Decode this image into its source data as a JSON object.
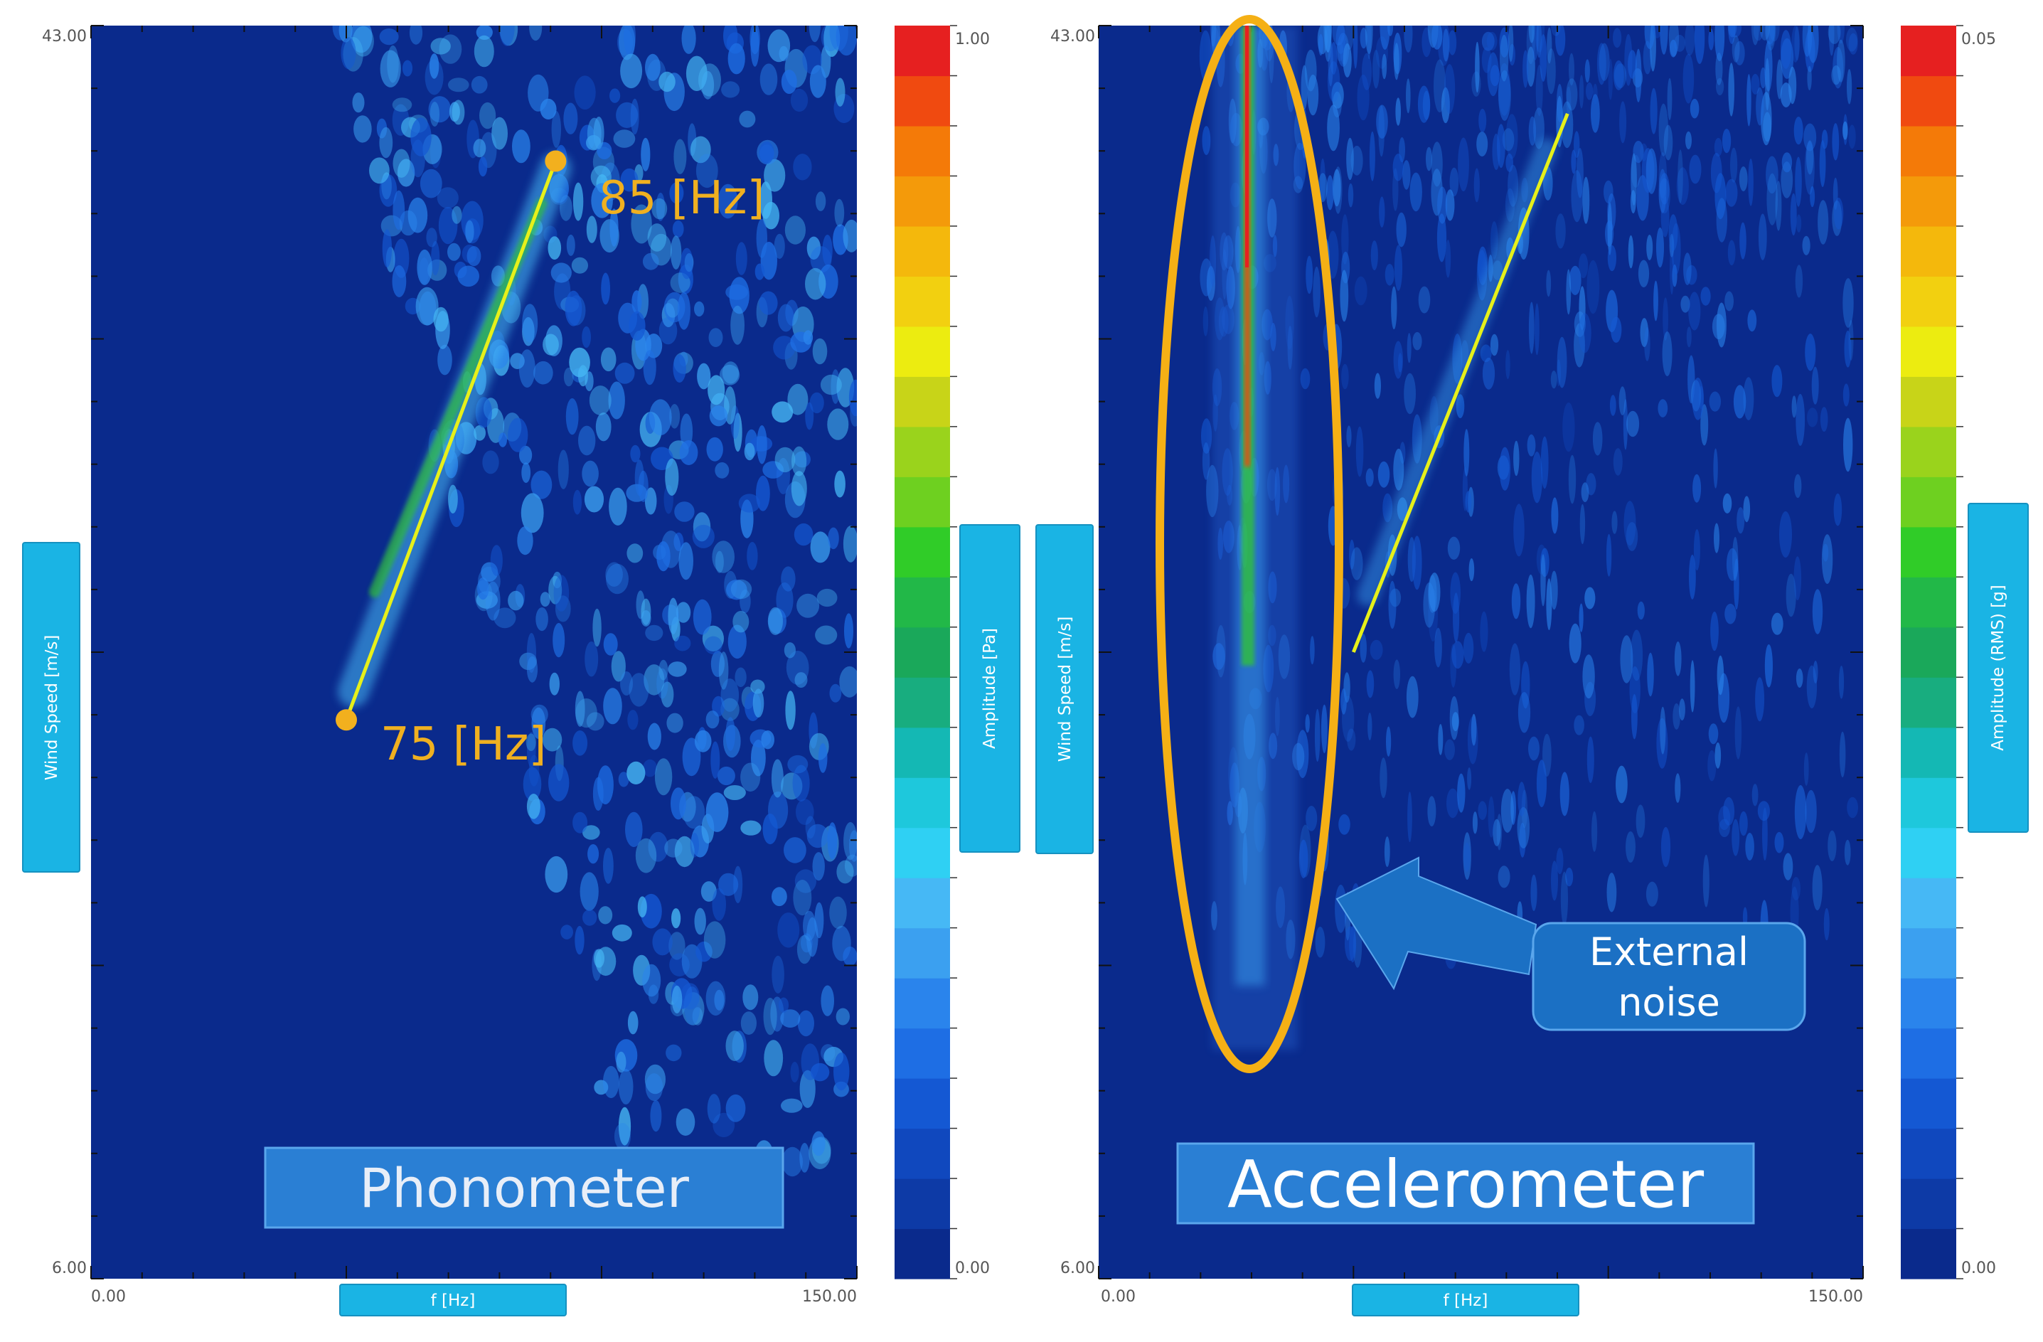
{
  "charts": [
    {
      "axes": {
        "ylabel": "Wind Speed [m/s]",
        "xlabel": "f [Hz]",
        "x_min_label": "0.00",
        "x_max_label": "150.00",
        "y_min_label": "6.00",
        "y_max_label": "43.00"
      },
      "colorbar": {
        "label": "Amplitude [Pa]",
        "min_label": "0.00",
        "max_label": "1.00"
      },
      "title": "Phonometer",
      "annotations": {
        "start_label": "75 [Hz]",
        "end_label": "85 [Hz]"
      }
    },
    {
      "axes": {
        "ylabel": "Wind Speed [m/s]",
        "xlabel": "f [Hz]",
        "x_min_label": "0.00",
        "x_max_label": "150.00",
        "y_min_label": "6.00",
        "y_max_label": "43.00"
      },
      "colorbar": {
        "label": "Amplitude (RMS) [g]",
        "min_label": "0.00",
        "max_label": "0.05"
      },
      "title": "Accelerometer",
      "annotations": {
        "callout_line1": "External",
        "callout_line2": "noise"
      }
    }
  ],
  "chart_data": [
    {
      "type": "heatmap",
      "title": "Phonometer",
      "xlabel": "f [Hz]",
      "ylabel": "Wind Speed [m/s]",
      "xlim": [
        0,
        150
      ],
      "ylim": [
        6,
        43
      ],
      "colorbar": {
        "label": "Amplitude [Pa]",
        "range": [
          0,
          1
        ]
      },
      "trend_line": {
        "x": [
          50,
          91
        ],
        "y": [
          22.5,
          39
        ]
      },
      "trend_points": [
        {
          "label": "75 [Hz]",
          "x": 50,
          "y": 22.5
        },
        {
          "label": "85 [Hz]",
          "x": 91,
          "y": 39
        }
      ]
    },
    {
      "type": "heatmap",
      "title": "Accelerometer",
      "xlabel": "f [Hz]",
      "ylabel": "Wind Speed [m/s]",
      "xlim": [
        0,
        150
      ],
      "ylim": [
        6,
        43
      ],
      "colorbar": {
        "label": "Amplitude (RMS) [g]",
        "range": [
          0,
          0.05
        ]
      },
      "trend_line": {
        "x": [
          50,
          92
        ],
        "y": [
          24.5,
          40.4
        ]
      },
      "highlight_ellipse": {
        "label": "External noise",
        "x_center": 28.5,
        "y_center": 27.4
      }
    }
  ],
  "colors": {
    "background": "#0a2a8c",
    "colormap": [
      "#0a2a8c",
      "#0d3aa6",
      "#1048be",
      "#1458d3",
      "#1e6ee4",
      "#2a84ec",
      "#3ba0f0",
      "#46b8f5",
      "#2fd0f3",
      "#1ec8dc",
      "#14b8b4",
      "#18ad7f",
      "#1aa85a",
      "#22b848",
      "#30cc28",
      "#6ed020",
      "#9ad31c",
      "#c8d418",
      "#ecec10",
      "#f2d010",
      "#f4b80c",
      "#f49a0a",
      "#f47a08",
      "#f04a10",
      "#e62020"
    ],
    "trend_line": "#e6f01a",
    "annotation": "#f0b020",
    "chip": "#1ab4e4",
    "title_box": "#2a7fd4",
    "callout": "#1b70c4"
  }
}
